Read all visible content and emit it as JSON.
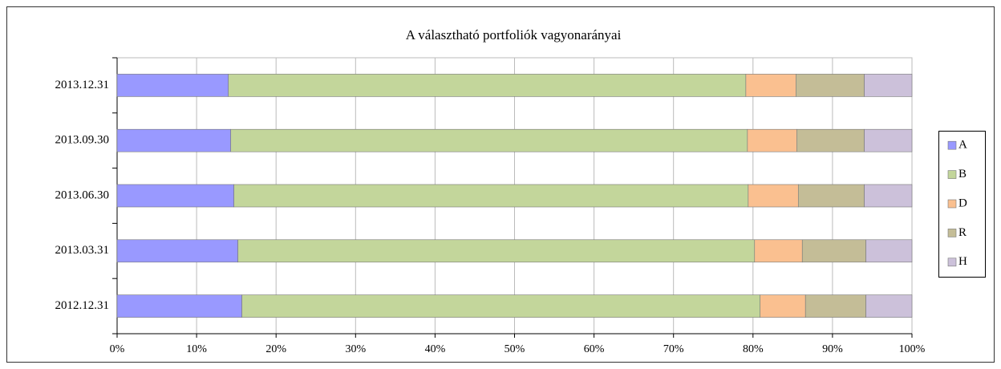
{
  "chart_data": {
    "type": "stacked-barh",
    "title": "A választható portfoliók  vagyonarányai",
    "categories": [
      "2013.12.31",
      "2013.09.30",
      "2013.06.30",
      "2013.03.31",
      "2012.12.31"
    ],
    "series": [
      {
        "name": "A",
        "color": "#9999ff",
        "values": [
          14.0,
          14.3,
          14.7,
          15.2,
          15.7
        ]
      },
      {
        "name": "B",
        "color": "#c3d69b",
        "values": [
          65.1,
          65.0,
          64.7,
          65.0,
          65.2
        ]
      },
      {
        "name": "D",
        "color": "#fac090",
        "values": [
          6.3,
          6.2,
          6.3,
          6.0,
          5.7
        ]
      },
      {
        "name": "R",
        "color": "#c4bd97",
        "values": [
          8.6,
          8.5,
          8.3,
          8.0,
          7.6
        ]
      },
      {
        "name": "H",
        "color": "#ccc1da",
        "values": [
          6.0,
          6.0,
          6.0,
          5.8,
          5.8
        ]
      }
    ],
    "xlim": [
      0,
      100
    ],
    "xticks": [
      {
        "value": 0,
        "label": "0%"
      },
      {
        "value": 10,
        "label": "10%"
      },
      {
        "value": 20,
        "label": "20%"
      },
      {
        "value": 30,
        "label": "30%"
      },
      {
        "value": 40,
        "label": "40%"
      },
      {
        "value": 50,
        "label": "50%"
      },
      {
        "value": 60,
        "label": "60%"
      },
      {
        "value": 70,
        "label": "70%"
      },
      {
        "value": 80,
        "label": "80%"
      },
      {
        "value": 90,
        "label": "90%"
      },
      {
        "value": 100,
        "label": "100%"
      }
    ],
    "grid": true,
    "legend": "right"
  }
}
